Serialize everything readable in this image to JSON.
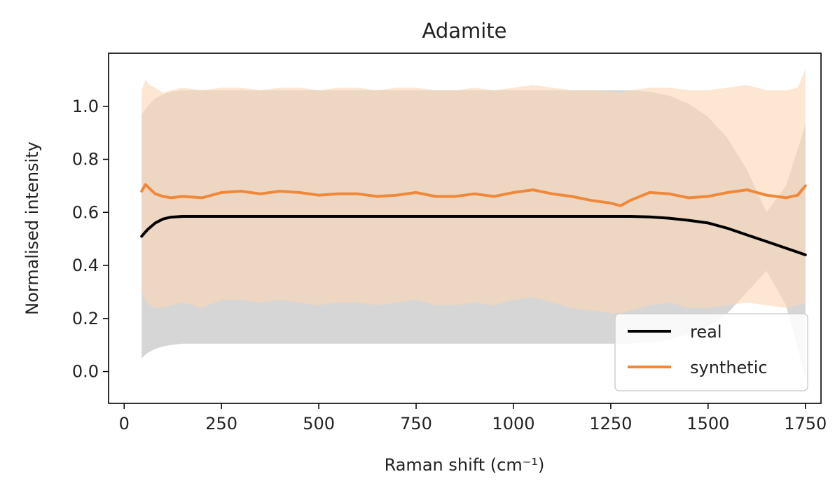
{
  "chart_data": {
    "type": "line",
    "title": "Adamite",
    "xlabel": "Raman shift (cm⁻¹)",
    "ylabel": "Normalised intensity",
    "xlim": [
      -40,
      1790
    ],
    "ylim": [
      -0.12,
      1.2
    ],
    "xticks": [
      0,
      250,
      500,
      750,
      1000,
      1250,
      1500,
      1750
    ],
    "yticks": [
      0.0,
      0.2,
      0.4,
      0.6,
      0.8,
      1.0
    ],
    "ytick_labels": [
      "0.0",
      "0.2",
      "0.4",
      "0.6",
      "0.8",
      "1.0"
    ],
    "grid": false,
    "legend": {
      "position": "lower-right",
      "entries": [
        "real",
        "synthetic"
      ]
    },
    "series": [
      {
        "name": "real",
        "color": "#000000",
        "band_color": "#c8c8c8",
        "x": [
          45,
          60,
          80,
          100,
          120,
          150,
          200,
          300,
          400,
          500,
          600,
          700,
          800,
          900,
          1000,
          1100,
          1200,
          1300,
          1350,
          1400,
          1450,
          1500,
          1550,
          1600,
          1650,
          1700,
          1750
        ],
        "mean": [
          0.51,
          0.535,
          0.56,
          0.575,
          0.582,
          0.585,
          0.585,
          0.585,
          0.585,
          0.585,
          0.585,
          0.585,
          0.585,
          0.585,
          0.585,
          0.585,
          0.585,
          0.585,
          0.583,
          0.578,
          0.57,
          0.56,
          0.54,
          0.515,
          0.49,
          0.465,
          0.44
        ],
        "upper": [
          0.97,
          1.0,
          1.03,
          1.045,
          1.055,
          1.06,
          1.06,
          1.06,
          1.06,
          1.06,
          1.06,
          1.06,
          1.06,
          1.06,
          1.06,
          1.06,
          1.06,
          1.06,
          1.055,
          1.04,
          1.01,
          0.96,
          0.88,
          0.76,
          0.6,
          0.7,
          0.93
        ],
        "lower": [
          0.05,
          0.07,
          0.085,
          0.095,
          0.1,
          0.105,
          0.105,
          0.105,
          0.105,
          0.105,
          0.105,
          0.105,
          0.105,
          0.105,
          0.105,
          0.105,
          0.105,
          0.105,
          0.11,
          0.12,
          0.14,
          0.17,
          0.22,
          0.3,
          0.38,
          0.25,
          -0.02
        ]
      },
      {
        "name": "synthetic",
        "color": "#f0883a",
        "band_color": "#fbd6b4",
        "x": [
          45,
          55,
          65,
          80,
          100,
          120,
          150,
          200,
          250,
          300,
          350,
          400,
          450,
          500,
          550,
          600,
          650,
          700,
          750,
          800,
          850,
          900,
          950,
          1000,
          1050,
          1100,
          1150,
          1200,
          1250,
          1275,
          1300,
          1350,
          1400,
          1450,
          1500,
          1550,
          1600,
          1650,
          1700,
          1730,
          1750
        ],
        "mean": [
          0.68,
          0.705,
          0.69,
          0.67,
          0.66,
          0.655,
          0.66,
          0.655,
          0.675,
          0.68,
          0.67,
          0.68,
          0.675,
          0.665,
          0.67,
          0.67,
          0.66,
          0.665,
          0.675,
          0.66,
          0.66,
          0.67,
          0.66,
          0.675,
          0.685,
          0.67,
          0.66,
          0.645,
          0.635,
          0.625,
          0.645,
          0.675,
          0.67,
          0.655,
          0.66,
          0.675,
          0.685,
          0.665,
          0.655,
          0.665,
          0.7
        ],
        "upper": [
          1.06,
          1.1,
          1.08,
          1.07,
          1.05,
          1.06,
          1.07,
          1.06,
          1.07,
          1.07,
          1.06,
          1.07,
          1.07,
          1.06,
          1.07,
          1.07,
          1.06,
          1.07,
          1.07,
          1.06,
          1.06,
          1.07,
          1.06,
          1.07,
          1.08,
          1.07,
          1.06,
          1.06,
          1.055,
          1.05,
          1.06,
          1.07,
          1.07,
          1.06,
          1.06,
          1.07,
          1.08,
          1.06,
          1.06,
          1.07,
          1.14
        ],
        "lower": [
          0.3,
          0.27,
          0.25,
          0.24,
          0.24,
          0.25,
          0.26,
          0.24,
          0.27,
          0.27,
          0.26,
          0.27,
          0.26,
          0.25,
          0.26,
          0.26,
          0.25,
          0.26,
          0.27,
          0.25,
          0.25,
          0.26,
          0.25,
          0.27,
          0.28,
          0.26,
          0.24,
          0.23,
          0.22,
          0.22,
          0.23,
          0.25,
          0.26,
          0.24,
          0.24,
          0.25,
          0.26,
          0.25,
          0.24,
          0.25,
          0.26
        ]
      }
    ]
  }
}
